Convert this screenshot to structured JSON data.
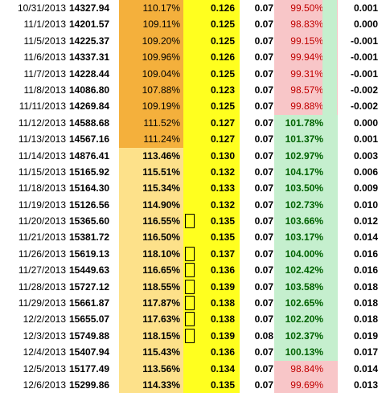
{
  "rows": [
    {
      "date": "10/31/2013",
      "close": "14327.94",
      "pct": "110.17%",
      "ratio": "0.126",
      "rate": "0.07",
      "pct2": "99.50%",
      "diff": "0.001",
      "pct_style": "orange",
      "pct2_style": "pink",
      "mark": false
    },
    {
      "date": "11/1/2013",
      "close": "14201.57",
      "pct": "109.11%",
      "ratio": "0.125",
      "rate": "0.07",
      "pct2": "98.83%",
      "diff": "0.000",
      "pct_style": "orange",
      "pct2_style": "pink",
      "mark": false
    },
    {
      "date": "11/5/2013",
      "close": "14225.37",
      "pct": "109.20%",
      "ratio": "0.125",
      "rate": "0.07",
      "pct2": "99.15%",
      "diff": "-0.001",
      "pct_style": "orange",
      "pct2_style": "pink",
      "mark": false
    },
    {
      "date": "11/6/2013",
      "close": "14337.31",
      "pct": "109.96%",
      "ratio": "0.126",
      "rate": "0.07",
      "pct2": "99.94%",
      "diff": "-0.001",
      "pct_style": "orange",
      "pct2_style": "pink",
      "mark": false
    },
    {
      "date": "11/7/2013",
      "close": "14228.44",
      "pct": "109.04%",
      "ratio": "0.125",
      "rate": "0.07",
      "pct2": "99.31%",
      "diff": "-0.001",
      "pct_style": "orange",
      "pct2_style": "pink",
      "mark": false
    },
    {
      "date": "11/8/2013",
      "close": "14086.80",
      "pct": "107.88%",
      "ratio": "0.123",
      "rate": "0.07",
      "pct2": "98.57%",
      "diff": "-0.002",
      "pct_style": "orange",
      "pct2_style": "pink",
      "mark": false
    },
    {
      "date": "11/11/2013",
      "close": "14269.84",
      "pct": "109.19%",
      "ratio": "0.125",
      "rate": "0.07",
      "pct2": "99.88%",
      "diff": "-0.002",
      "pct_style": "orange",
      "pct2_style": "pink",
      "mark": false
    },
    {
      "date": "11/12/2013",
      "close": "14588.68",
      "pct": "111.52%",
      "ratio": "0.127",
      "rate": "0.07",
      "pct2": "101.78%",
      "diff": "0.000",
      "pct_style": "orange",
      "pct2_style": "green",
      "mark": false
    },
    {
      "date": "11/13/2013",
      "close": "14567.16",
      "pct": "111.24%",
      "ratio": "0.127",
      "rate": "0.07",
      "pct2": "101.37%",
      "diff": "0.001",
      "pct_style": "orange",
      "pct2_style": "green",
      "mark": false
    },
    {
      "date": "11/14/2013",
      "close": "14876.41",
      "pct": "113.46%",
      "ratio": "0.130",
      "rate": "0.07",
      "pct2": "102.97%",
      "diff": "0.003",
      "pct_style": "lightorange",
      "pct2_style": "green",
      "mark": false
    },
    {
      "date": "11/15/2013",
      "close": "15165.92",
      "pct": "115.51%",
      "ratio": "0.132",
      "rate": "0.07",
      "pct2": "104.17%",
      "diff": "0.006",
      "pct_style": "lightorange",
      "pct2_style": "green",
      "mark": false
    },
    {
      "date": "11/18/2013",
      "close": "15164.30",
      "pct": "115.34%",
      "ratio": "0.133",
      "rate": "0.07",
      "pct2": "103.50%",
      "diff": "0.009",
      "pct_style": "lightorange",
      "pct2_style": "green",
      "mark": false
    },
    {
      "date": "11/19/2013",
      "close": "15126.56",
      "pct": "114.90%",
      "ratio": "0.132",
      "rate": "0.07",
      "pct2": "102.73%",
      "diff": "0.010",
      "pct_style": "lightorange",
      "pct2_style": "green",
      "mark": false
    },
    {
      "date": "11/20/2013",
      "close": "15365.60",
      "pct": "116.55%",
      "ratio": "0.135",
      "rate": "0.07",
      "pct2": "103.66%",
      "diff": "0.012",
      "pct_style": "lightorange",
      "pct2_style": "green",
      "mark": true
    },
    {
      "date": "11/21/2013",
      "close": "15381.72",
      "pct": "116.50%",
      "ratio": "0.135",
      "rate": "0.07",
      "pct2": "103.17%",
      "diff": "0.014",
      "pct_style": "lightorange",
      "pct2_style": "green",
      "mark": false
    },
    {
      "date": "11/26/2013",
      "close": "15619.13",
      "pct": "118.10%",
      "ratio": "0.137",
      "rate": "0.07",
      "pct2": "104.00%",
      "diff": "0.016",
      "pct_style": "lightorange",
      "pct2_style": "green",
      "mark": true
    },
    {
      "date": "11/27/2013",
      "close": "15449.63",
      "pct": "116.65%",
      "ratio": "0.136",
      "rate": "0.07",
      "pct2": "102.42%",
      "diff": "0.016",
      "pct_style": "lightorange",
      "pct2_style": "green",
      "mark": true
    },
    {
      "date": "11/28/2013",
      "close": "15727.12",
      "pct": "118.55%",
      "ratio": "0.139",
      "rate": "0.07",
      "pct2": "103.58%",
      "diff": "0.018",
      "pct_style": "lightorange",
      "pct2_style": "green",
      "mark": true
    },
    {
      "date": "11/29/2013",
      "close": "15661.87",
      "pct": "117.87%",
      "ratio": "0.138",
      "rate": "0.07",
      "pct2": "102.65%",
      "diff": "0.018",
      "pct_style": "lightorange",
      "pct2_style": "green",
      "mark": true
    },
    {
      "date": "12/2/2013",
      "close": "15655.07",
      "pct": "117.63%",
      "ratio": "0.138",
      "rate": "0.07",
      "pct2": "102.20%",
      "diff": "0.018",
      "pct_style": "lightorange",
      "pct2_style": "green",
      "mark": true
    },
    {
      "date": "12/3/2013",
      "close": "15749.88",
      "pct": "118.15%",
      "ratio": "0.139",
      "rate": "0.08",
      "pct2": "102.37%",
      "diff": "0.019",
      "pct_style": "lightorange",
      "pct2_style": "green",
      "mark": true
    },
    {
      "date": "12/4/2013",
      "close": "15407.94",
      "pct": "115.43%",
      "ratio": "0.136",
      "rate": "0.07",
      "pct2": "100.13%",
      "diff": "0.017",
      "pct_style": "lightorange",
      "pct2_style": "green",
      "mark": false
    },
    {
      "date": "12/5/2013",
      "close": "15177.49",
      "pct": "113.56%",
      "ratio": "0.134",
      "rate": "0.07",
      "pct2": "98.84%",
      "diff": "0.014",
      "pct_style": "lightorange",
      "pct2_style": "pink",
      "mark": false
    },
    {
      "date": "12/6/2013",
      "close": "15299.86",
      "pct": "114.33%",
      "ratio": "0.135",
      "rate": "0.07",
      "pct2": "99.69%",
      "diff": "0.013",
      "pct_style": "lightorange",
      "pct2_style": "pink",
      "mark": false
    }
  ],
  "colors": {
    "orange": "#f4b03c",
    "lightorange": "#fde18a",
    "yellow": "#ffff1f",
    "pink": "#f8c6c8",
    "pink_text": "#c00000",
    "green": "#c5efce",
    "green_text": "#006100"
  }
}
